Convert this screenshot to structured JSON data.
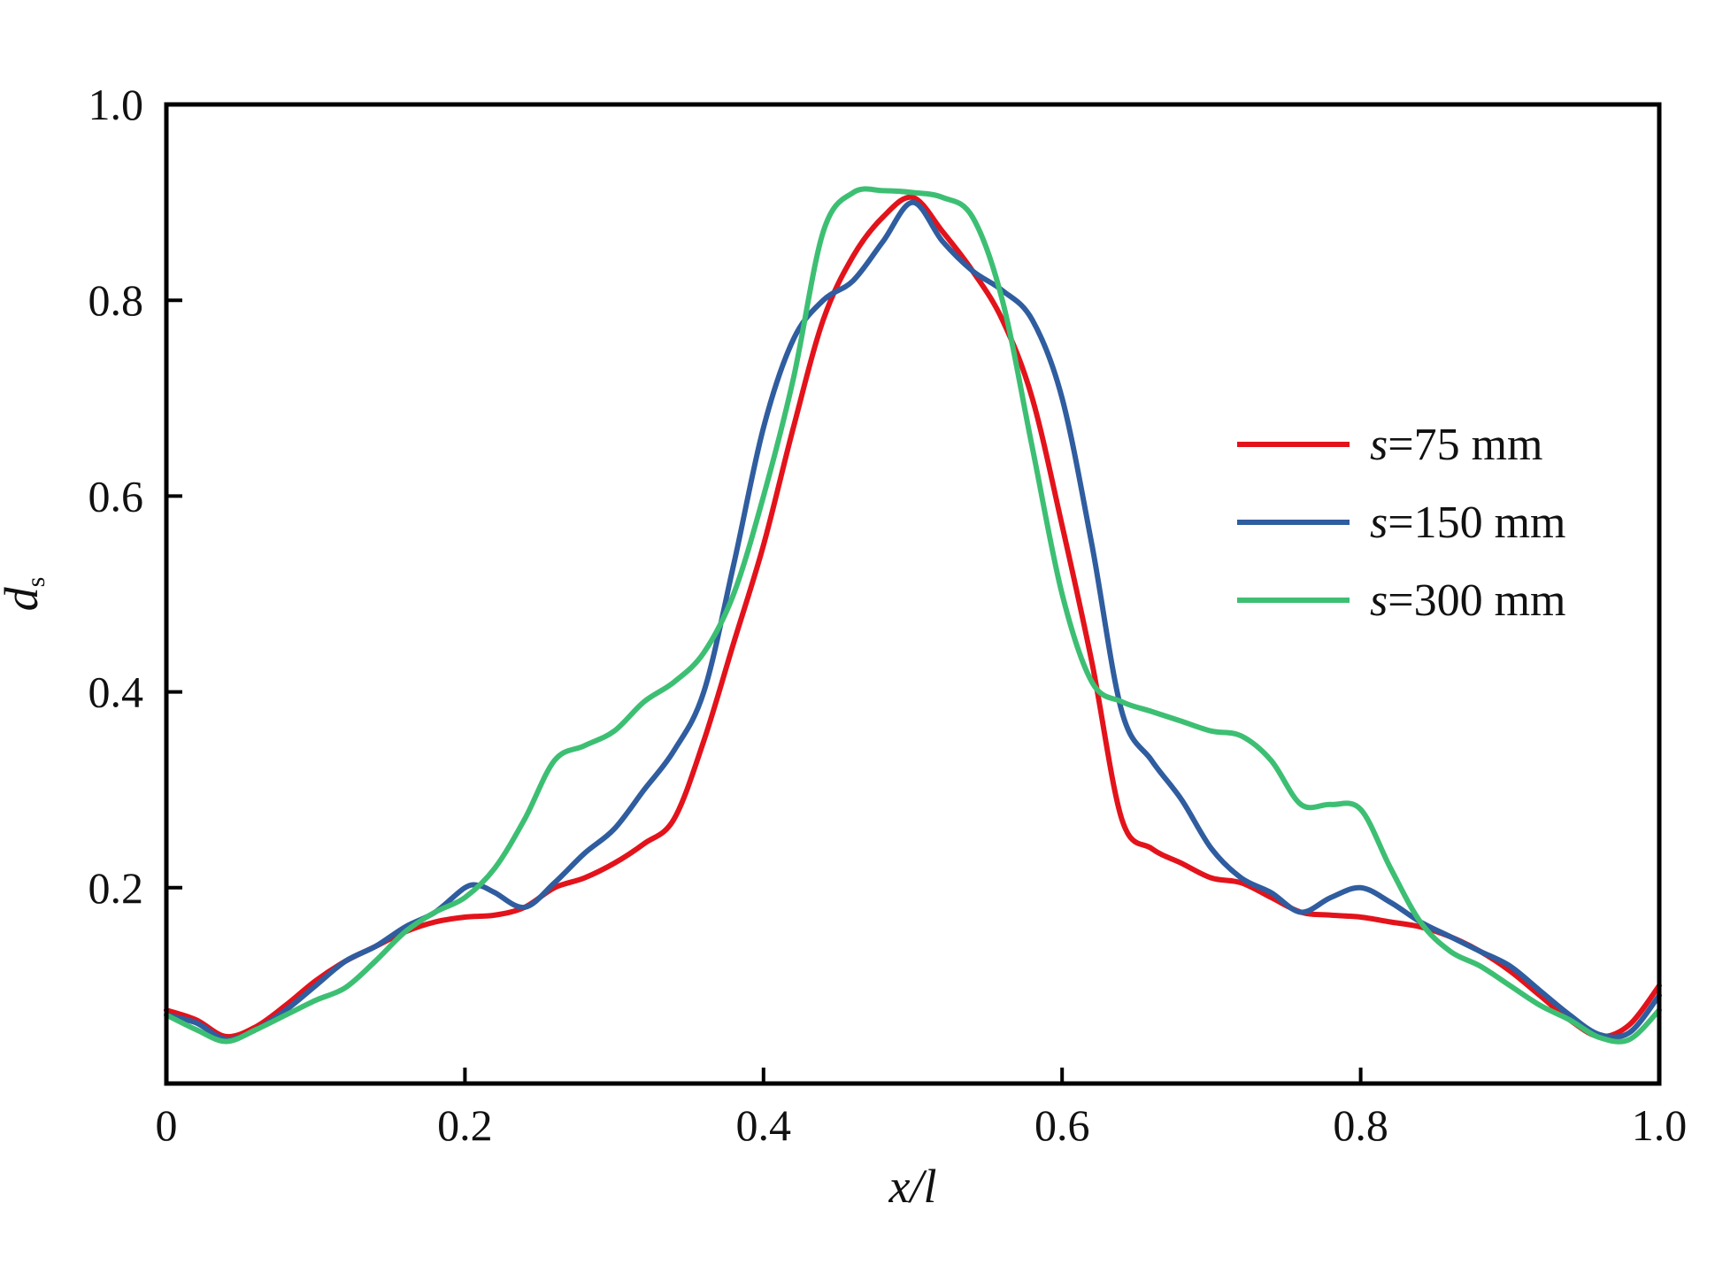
{
  "chart_data": {
    "type": "line",
    "title": "",
    "xlabel": "x/l",
    "ylabel_main": "d",
    "ylabel_sub": "s",
    "xlim": [
      0,
      1.0
    ],
    "ylim": [
      0,
      1.0
    ],
    "xticks": [
      0,
      0.2,
      0.4,
      0.6,
      0.8,
      1.0
    ],
    "xtick_labels": [
      "0",
      "0.2",
      "0.4",
      "0.6",
      "0.8",
      "1.0"
    ],
    "yticks": [
      0.2,
      0.4,
      0.6,
      0.8,
      1.0
    ],
    "ytick_labels": [
      "0.2",
      "0.4",
      "0.6",
      "0.8",
      "1.0"
    ],
    "grid": false,
    "legend_position": "center-right",
    "series": [
      {
        "name": "s=75 mm",
        "legend_var": "s",
        "legend_rest": "=75 mm",
        "color": "#e3131b",
        "x": [
          0,
          0.02,
          0.04,
          0.06,
          0.08,
          0.1,
          0.12,
          0.14,
          0.16,
          0.18,
          0.2,
          0.22,
          0.24,
          0.26,
          0.28,
          0.3,
          0.32,
          0.34,
          0.36,
          0.38,
          0.4,
          0.42,
          0.44,
          0.46,
          0.48,
          0.5,
          0.52,
          0.54,
          0.56,
          0.58,
          0.6,
          0.62,
          0.64,
          0.66,
          0.68,
          0.7,
          0.72,
          0.74,
          0.76,
          0.78,
          0.8,
          0.82,
          0.84,
          0.86,
          0.88,
          0.9,
          0.92,
          0.94,
          0.96,
          0.98,
          1.0
        ],
        "y": [
          0.075,
          0.065,
          0.048,
          0.058,
          0.08,
          0.105,
          0.125,
          0.14,
          0.155,
          0.165,
          0.17,
          0.172,
          0.18,
          0.2,
          0.21,
          0.225,
          0.245,
          0.27,
          0.35,
          0.45,
          0.55,
          0.67,
          0.78,
          0.845,
          0.885,
          0.905,
          0.87,
          0.83,
          0.78,
          0.7,
          0.57,
          0.43,
          0.27,
          0.24,
          0.225,
          0.21,
          0.205,
          0.19,
          0.175,
          0.172,
          0.17,
          0.165,
          0.16,
          0.15,
          0.135,
          0.115,
          0.09,
          0.065,
          0.048,
          0.06,
          0.1
        ]
      },
      {
        "name": "s=150 mm",
        "legend_var": "s",
        "legend_rest": "=150 mm",
        "color": "#2f5d9f",
        "x": [
          0,
          0.02,
          0.04,
          0.06,
          0.08,
          0.1,
          0.12,
          0.14,
          0.16,
          0.18,
          0.2,
          0.21,
          0.22,
          0.24,
          0.26,
          0.28,
          0.3,
          0.32,
          0.34,
          0.36,
          0.38,
          0.4,
          0.42,
          0.44,
          0.46,
          0.48,
          0.5,
          0.52,
          0.54,
          0.56,
          0.58,
          0.6,
          0.62,
          0.64,
          0.66,
          0.68,
          0.7,
          0.72,
          0.74,
          0.76,
          0.78,
          0.8,
          0.82,
          0.84,
          0.86,
          0.88,
          0.9,
          0.92,
          0.94,
          0.96,
          0.98,
          1.0
        ],
        "y": [
          0.07,
          0.062,
          0.045,
          0.055,
          0.075,
          0.1,
          0.125,
          0.14,
          0.16,
          0.175,
          0.2,
          0.202,
          0.195,
          0.18,
          0.205,
          0.235,
          0.26,
          0.3,
          0.34,
          0.4,
          0.53,
          0.67,
          0.76,
          0.8,
          0.82,
          0.86,
          0.9,
          0.86,
          0.83,
          0.81,
          0.78,
          0.7,
          0.55,
          0.38,
          0.33,
          0.29,
          0.24,
          0.21,
          0.195,
          0.175,
          0.19,
          0.2,
          0.185,
          0.165,
          0.15,
          0.135,
          0.12,
          0.095,
          0.07,
          0.05,
          0.052,
          0.09
        ]
      },
      {
        "name": "s=300 mm",
        "legend_var": "s",
        "legend_rest": "=300 mm",
        "color": "#3dbf73",
        "x": [
          0,
          0.02,
          0.04,
          0.06,
          0.08,
          0.1,
          0.12,
          0.14,
          0.16,
          0.18,
          0.2,
          0.22,
          0.24,
          0.26,
          0.28,
          0.3,
          0.32,
          0.34,
          0.36,
          0.38,
          0.4,
          0.42,
          0.44,
          0.46,
          0.48,
          0.5,
          0.52,
          0.54,
          0.56,
          0.58,
          0.6,
          0.62,
          0.64,
          0.66,
          0.68,
          0.7,
          0.72,
          0.74,
          0.76,
          0.78,
          0.8,
          0.82,
          0.84,
          0.86,
          0.88,
          0.9,
          0.92,
          0.94,
          0.96,
          0.98,
          1.0
        ],
        "y": [
          0.07,
          0.055,
          0.043,
          0.055,
          0.07,
          0.085,
          0.098,
          0.125,
          0.155,
          0.175,
          0.19,
          0.22,
          0.27,
          0.33,
          0.345,
          0.36,
          0.39,
          0.41,
          0.44,
          0.5,
          0.6,
          0.72,
          0.87,
          0.91,
          0.912,
          0.91,
          0.905,
          0.885,
          0.8,
          0.65,
          0.5,
          0.41,
          0.39,
          0.38,
          0.37,
          0.36,
          0.355,
          0.33,
          0.285,
          0.285,
          0.28,
          0.22,
          0.165,
          0.135,
          0.12,
          0.1,
          0.08,
          0.065,
          0.047,
          0.045,
          0.075
        ]
      }
    ]
  }
}
